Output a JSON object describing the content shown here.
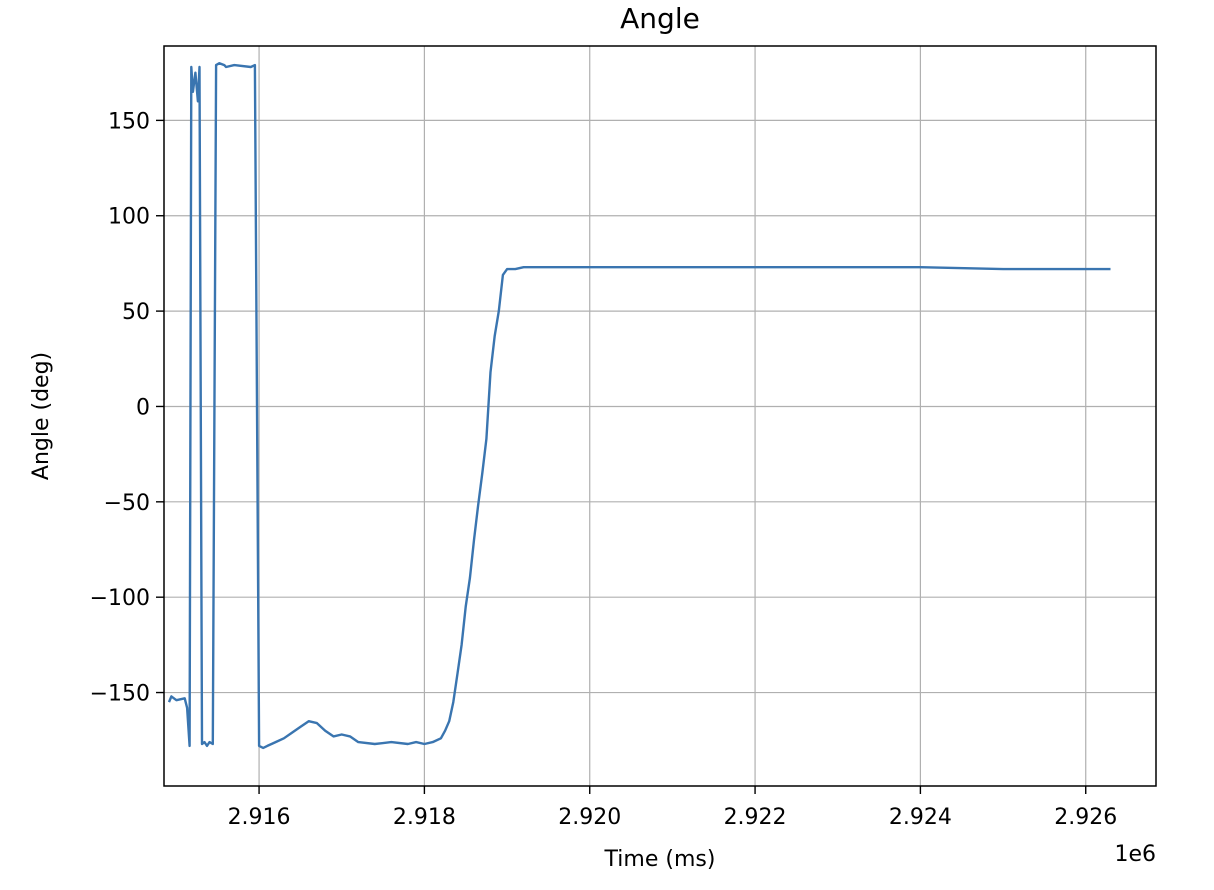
{
  "chart_data": {
    "type": "line",
    "title": "Angle",
    "xlabel": "Time (ms)",
    "ylabel": "Angle (deg)",
    "x_offset_label": "1e6",
    "xlim": [
      2.91485,
      2.92685
    ],
    "ylim": [
      -199,
      189
    ],
    "x_ticks": [
      2.916,
      2.918,
      2.92,
      2.922,
      2.924,
      2.926
    ],
    "x_tick_labels": [
      "2.916",
      "2.918",
      "2.920",
      "2.922",
      "2.924",
      "2.926"
    ],
    "y_ticks": [
      150,
      100,
      50,
      0,
      -50,
      -100,
      -150
    ],
    "y_tick_labels": [
      "150",
      "100",
      "50",
      "0",
      "−50",
      "−100",
      "−150"
    ],
    "grid": true,
    "series": [
      {
        "color": "#3a75b0",
        "x": [
          2.91491,
          2.91494,
          2.915,
          2.9151,
          2.91513,
          2.91516,
          2.91518,
          2.9152,
          2.91523,
          2.91526,
          2.91528,
          2.91531,
          2.91534,
          2.91537,
          2.9154,
          2.91544,
          2.91548,
          2.91552,
          2.91558,
          2.9156,
          2.9157,
          2.9159,
          2.91595,
          2.916,
          2.91605,
          2.9161,
          2.91615,
          2.9162,
          2.9163,
          2.9164,
          2.9165,
          2.9166,
          2.9167,
          2.9168,
          2.9169,
          2.917,
          2.9171,
          2.9172,
          2.9174,
          2.9176,
          2.9178,
          2.9179,
          2.918,
          2.9181,
          2.9182,
          2.91825,
          2.9183,
          2.91835,
          2.9184,
          2.91845,
          2.9185,
          2.91855,
          2.9186,
          2.91865,
          2.9187,
          2.91875,
          2.9188,
          2.91885,
          2.9189,
          2.91895,
          2.919,
          2.9191,
          2.9192,
          2.9194,
          2.9196,
          2.92,
          2.921,
          2.922,
          2.923,
          2.924,
          2.925,
          2.926,
          2.9263
        ],
        "y": [
          -155,
          -152,
          -154,
          -153,
          -158,
          -178,
          178,
          165,
          175,
          160,
          178,
          -177,
          -176,
          -178,
          -176,
          -177,
          179,
          180,
          179,
          178,
          179,
          178,
          179,
          -178,
          -179,
          -178,
          -177,
          -176,
          -174,
          -171,
          -168,
          -165,
          -166,
          -170,
          -173,
          -172,
          -173,
          -176,
          -177,
          -176,
          -177,
          -176,
          -177,
          -176,
          -174,
          -170,
          -165,
          -155,
          -140,
          -125,
          -105,
          -90,
          -70,
          -52,
          -35,
          -17,
          18,
          37,
          50,
          69,
          72,
          72,
          73,
          73,
          73,
          73,
          73,
          73,
          73,
          73,
          72,
          72,
          72
        ]
      }
    ]
  }
}
